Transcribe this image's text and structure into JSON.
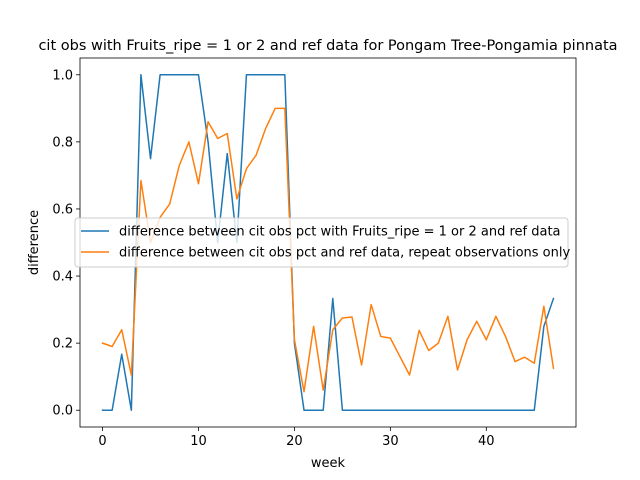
{
  "chart_data": {
    "type": "line",
    "title": "cit obs with Fruits_ripe = 1 or 2 and ref data for Pongam Tree-Pongamia pinnata",
    "xlabel": "week",
    "ylabel": "difference",
    "xlim": [
      -2.35,
      49.35
    ],
    "ylim": [
      -0.05,
      1.05
    ],
    "xticks": [
      0,
      10,
      20,
      30,
      40
    ],
    "yticks": [
      0.0,
      0.2,
      0.4,
      0.6,
      0.8,
      1.0
    ],
    "grid": false,
    "legend_position": "center-right",
    "series": [
      {
        "name": "difference between cit obs pct with Fruits_ripe = 1 or 2 and ref data",
        "color": "#1f77b4",
        "x": [
          0,
          1,
          2,
          3,
          4,
          5,
          6,
          7,
          8,
          9,
          10,
          11,
          12,
          13,
          14,
          15,
          16,
          17,
          18,
          19,
          20,
          21,
          22,
          23,
          24,
          25,
          26,
          27,
          28,
          29,
          30,
          31,
          32,
          33,
          34,
          35,
          36,
          37,
          38,
          39,
          40,
          41,
          42,
          43,
          44,
          45,
          46,
          47
        ],
        "values": [
          0,
          0,
          0.167,
          0,
          1.0,
          0.75,
          1.0,
          1.0,
          1.0,
          1.0,
          1.0,
          0.8,
          0.5,
          0.765,
          0.5,
          1.0,
          1.0,
          1.0,
          1.0,
          1.0,
          0.2,
          0,
          0,
          0,
          0.333,
          0,
          0,
          0,
          0,
          0,
          0,
          0,
          0,
          0,
          0,
          0,
          0,
          0,
          0,
          0,
          0,
          0,
          0,
          0,
          0,
          0,
          0.25,
          0.333
        ]
      },
      {
        "name": "difference between cit obs pct and ref data, repeat observations only",
        "color": "#ff7f0e",
        "x": [
          0,
          1,
          2,
          3,
          4,
          5,
          6,
          7,
          8,
          9,
          10,
          11,
          12,
          13,
          14,
          15,
          16,
          17,
          18,
          19,
          20,
          21,
          22,
          23,
          24,
          25,
          26,
          27,
          28,
          29,
          30,
          31,
          32,
          33,
          34,
          35,
          36,
          37,
          38,
          39,
          40,
          41,
          42,
          43,
          44,
          45,
          46,
          47
        ],
        "values": [
          0.2,
          0.19,
          0.24,
          0.105,
          0.685,
          0.5,
          0.575,
          0.615,
          0.73,
          0.8,
          0.675,
          0.86,
          0.81,
          0.825,
          0.63,
          0.72,
          0.76,
          0.84,
          0.9,
          0.9,
          0.21,
          0.055,
          0.25,
          0.06,
          0.24,
          0.275,
          0.278,
          0.135,
          0.315,
          0.22,
          0.215,
          0.16,
          0.105,
          0.238,
          0.178,
          0.2,
          0.28,
          0.12,
          0.21,
          0.265,
          0.21,
          0.28,
          0.22,
          0.145,
          0.158,
          0.14,
          0.31,
          0.125
        ]
      }
    ]
  }
}
